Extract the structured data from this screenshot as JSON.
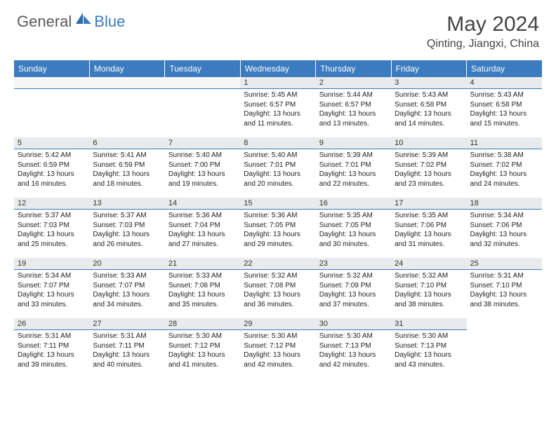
{
  "brand": {
    "general": "General",
    "blue": "Blue"
  },
  "title": "May 2024",
  "location": "Qinting, Jiangxi, China",
  "colors": {
    "header_bg": "#3b7bbf",
    "header_text": "#ffffff",
    "daynum_bg": "#e9eaeb",
    "daynum_border": "#3b7bbf",
    "body_text": "#222222",
    "title_text": "#444444"
  },
  "fonts": {
    "base_family": "Arial",
    "title_size_pt": 22,
    "location_size_pt": 12,
    "header_size_pt": 9,
    "daynum_size_pt": 8,
    "body_size_pt": 7
  },
  "columns": [
    "Sunday",
    "Monday",
    "Tuesday",
    "Wednesday",
    "Thursday",
    "Friday",
    "Saturday"
  ],
  "weeks": [
    [
      null,
      null,
      null,
      {
        "n": "1",
        "sr": "5:45 AM",
        "ss": "6:57 PM",
        "dl1": "13 hours",
        "dl2": "and 11 minutes."
      },
      {
        "n": "2",
        "sr": "5:44 AM",
        "ss": "6:57 PM",
        "dl1": "13 hours",
        "dl2": "and 13 minutes."
      },
      {
        "n": "3",
        "sr": "5:43 AM",
        "ss": "6:58 PM",
        "dl1": "13 hours",
        "dl2": "and 14 minutes."
      },
      {
        "n": "4",
        "sr": "5:43 AM",
        "ss": "6:58 PM",
        "dl1": "13 hours",
        "dl2": "and 15 minutes."
      }
    ],
    [
      {
        "n": "5",
        "sr": "5:42 AM",
        "ss": "6:59 PM",
        "dl1": "13 hours",
        "dl2": "and 16 minutes."
      },
      {
        "n": "6",
        "sr": "5:41 AM",
        "ss": "6:59 PM",
        "dl1": "13 hours",
        "dl2": "and 18 minutes."
      },
      {
        "n": "7",
        "sr": "5:40 AM",
        "ss": "7:00 PM",
        "dl1": "13 hours",
        "dl2": "and 19 minutes."
      },
      {
        "n": "8",
        "sr": "5:40 AM",
        "ss": "7:01 PM",
        "dl1": "13 hours",
        "dl2": "and 20 minutes."
      },
      {
        "n": "9",
        "sr": "5:39 AM",
        "ss": "7:01 PM",
        "dl1": "13 hours",
        "dl2": "and 22 minutes."
      },
      {
        "n": "10",
        "sr": "5:39 AM",
        "ss": "7:02 PM",
        "dl1": "13 hours",
        "dl2": "and 23 minutes."
      },
      {
        "n": "11",
        "sr": "5:38 AM",
        "ss": "7:02 PM",
        "dl1": "13 hours",
        "dl2": "and 24 minutes."
      }
    ],
    [
      {
        "n": "12",
        "sr": "5:37 AM",
        "ss": "7:03 PM",
        "dl1": "13 hours",
        "dl2": "and 25 minutes."
      },
      {
        "n": "13",
        "sr": "5:37 AM",
        "ss": "7:03 PM",
        "dl1": "13 hours",
        "dl2": "and 26 minutes."
      },
      {
        "n": "14",
        "sr": "5:36 AM",
        "ss": "7:04 PM",
        "dl1": "13 hours",
        "dl2": "and 27 minutes."
      },
      {
        "n": "15",
        "sr": "5:36 AM",
        "ss": "7:05 PM",
        "dl1": "13 hours",
        "dl2": "and 29 minutes."
      },
      {
        "n": "16",
        "sr": "5:35 AM",
        "ss": "7:05 PM",
        "dl1": "13 hours",
        "dl2": "and 30 minutes."
      },
      {
        "n": "17",
        "sr": "5:35 AM",
        "ss": "7:06 PM",
        "dl1": "13 hours",
        "dl2": "and 31 minutes."
      },
      {
        "n": "18",
        "sr": "5:34 AM",
        "ss": "7:06 PM",
        "dl1": "13 hours",
        "dl2": "and 32 minutes."
      }
    ],
    [
      {
        "n": "19",
        "sr": "5:34 AM",
        "ss": "7:07 PM",
        "dl1": "13 hours",
        "dl2": "and 33 minutes."
      },
      {
        "n": "20",
        "sr": "5:33 AM",
        "ss": "7:07 PM",
        "dl1": "13 hours",
        "dl2": "and 34 minutes."
      },
      {
        "n": "21",
        "sr": "5:33 AM",
        "ss": "7:08 PM",
        "dl1": "13 hours",
        "dl2": "and 35 minutes."
      },
      {
        "n": "22",
        "sr": "5:32 AM",
        "ss": "7:08 PM",
        "dl1": "13 hours",
        "dl2": "and 36 minutes."
      },
      {
        "n": "23",
        "sr": "5:32 AM",
        "ss": "7:09 PM",
        "dl1": "13 hours",
        "dl2": "and 37 minutes."
      },
      {
        "n": "24",
        "sr": "5:32 AM",
        "ss": "7:10 PM",
        "dl1": "13 hours",
        "dl2": "and 38 minutes."
      },
      {
        "n": "25",
        "sr": "5:31 AM",
        "ss": "7:10 PM",
        "dl1": "13 hours",
        "dl2": "and 38 minutes."
      }
    ],
    [
      {
        "n": "26",
        "sr": "5:31 AM",
        "ss": "7:11 PM",
        "dl1": "13 hours",
        "dl2": "and 39 minutes."
      },
      {
        "n": "27",
        "sr": "5:31 AM",
        "ss": "7:11 PM",
        "dl1": "13 hours",
        "dl2": "and 40 minutes."
      },
      {
        "n": "28",
        "sr": "5:30 AM",
        "ss": "7:12 PM",
        "dl1": "13 hours",
        "dl2": "and 41 minutes."
      },
      {
        "n": "29",
        "sr": "5:30 AM",
        "ss": "7:12 PM",
        "dl1": "13 hours",
        "dl2": "and 42 minutes."
      },
      {
        "n": "30",
        "sr": "5:30 AM",
        "ss": "7:13 PM",
        "dl1": "13 hours",
        "dl2": "and 42 minutes."
      },
      {
        "n": "31",
        "sr": "5:30 AM",
        "ss": "7:13 PM",
        "dl1": "13 hours",
        "dl2": "and 43 minutes."
      },
      null
    ]
  ],
  "labels": {
    "sunrise": "Sunrise:",
    "sunset": "Sunset:",
    "daylight": "Daylight:"
  }
}
